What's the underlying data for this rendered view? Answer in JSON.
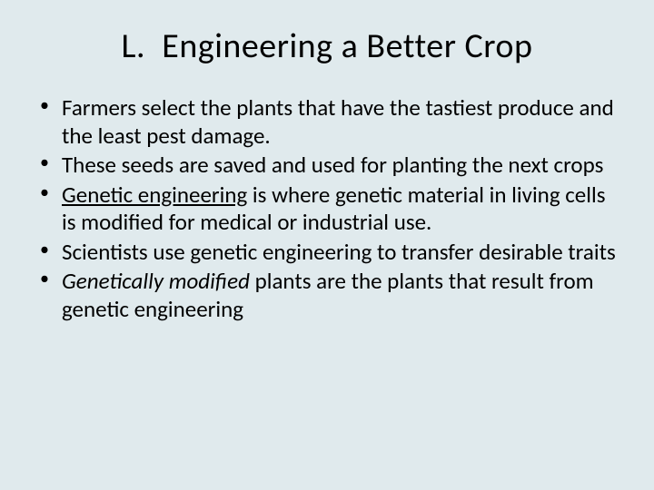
{
  "slide": {
    "background_color": "#e0eaed",
    "text_color": "#000000",
    "font_family": "Calibri",
    "title": {
      "label_prefix": "L.",
      "text": "Engineering a Better Crop",
      "fontsize": 38,
      "align": "center"
    },
    "bullets": {
      "fontsize": 25,
      "marker": "•",
      "items": [
        {
          "segments": [
            {
              "text": "Farmers select the plants that have the tastiest produce and the least pest damage."
            }
          ]
        },
        {
          "segments": [
            {
              "text": "These seeds are saved and used for planting the next crops"
            }
          ]
        },
        {
          "segments": [
            {
              "text": "Genetic engineering",
              "style": "underline"
            },
            {
              "text": " is where genetic material in living cells is modified for medical or industrial use."
            }
          ]
        },
        {
          "segments": [
            {
              "text": "Scientists use genetic engineering to transfer desirable traits"
            }
          ]
        },
        {
          "segments": [
            {
              "text": "Genetically modified",
              "style": "italic"
            },
            {
              "text": " plants are the plants that result from genetic engineering"
            }
          ]
        }
      ]
    }
  }
}
